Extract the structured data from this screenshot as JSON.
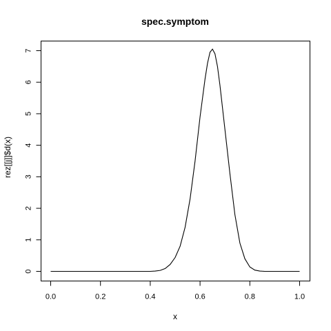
{
  "chart_data": {
    "type": "line",
    "title": "spec.symptom",
    "xlabel": "x",
    "ylabel": "rez[[j]]$d(x)",
    "xlim": [
      0,
      1
    ],
    "ylim": [
      0,
      7
    ],
    "xticks": [
      "0.0",
      "0.2",
      "0.4",
      "0.6",
      "0.8",
      "1.0"
    ],
    "yticks": [
      "0",
      "1",
      "2",
      "3",
      "4",
      "5",
      "6",
      "7"
    ],
    "grid": false,
    "legend": "none",
    "series": [
      {
        "x": [
          0.0,
          0.05,
          0.1,
          0.15,
          0.2,
          0.25,
          0.3,
          0.35,
          0.4,
          0.42,
          0.44,
          0.46,
          0.48,
          0.5,
          0.52,
          0.54,
          0.56,
          0.58,
          0.6,
          0.62,
          0.63,
          0.64,
          0.65,
          0.66,
          0.67,
          0.68,
          0.7,
          0.72,
          0.74,
          0.76,
          0.78,
          0.8,
          0.82,
          0.84,
          0.86,
          0.9,
          0.95,
          1.0
        ],
        "y": [
          0.0,
          0.0,
          0.0,
          0.0,
          0.0,
          0.0,
          0.0,
          0.0,
          0.0,
          0.01,
          0.03,
          0.09,
          0.22,
          0.44,
          0.8,
          1.4,
          2.3,
          3.5,
          4.9,
          6.1,
          6.6,
          6.95,
          7.05,
          6.9,
          6.5,
          5.9,
          4.5,
          3.1,
          1.8,
          0.9,
          0.4,
          0.14,
          0.04,
          0.01,
          0.0,
          0.0,
          0.0,
          0.0
        ]
      }
    ]
  }
}
